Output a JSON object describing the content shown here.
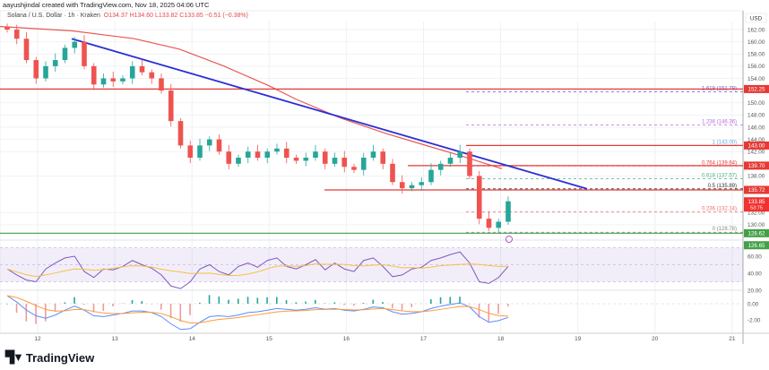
{
  "credit": "aayushjindal created with TradingView.com, Nov 18, 2025 04:06 UTC",
  "legend": {
    "symbol": "Solana / U.S. Dollar · 1h · Kraken",
    "open": "O134.37",
    "high": "H134.60",
    "low": "L133.82",
    "close": "C133.85",
    "change": "−0.51 (−0.38%)"
  },
  "currency": "USD",
  "brand": "TradingView",
  "colors": {
    "up": "#26a69a",
    "down": "#ef5350",
    "trendline": "#2a2fd4",
    "sma": "#e53935",
    "rsi": "#7e57c2",
    "rsi_ma": "#f5c242",
    "macd": "#5b8cff",
    "signal": "#ff9a3c"
  },
  "chart_data": {
    "type": "candlestick",
    "timeframe": "1h",
    "x_ticks": [
      "12",
      "13",
      "14",
      "15",
      "16",
      "17",
      "18",
      "19",
      "20",
      "21"
    ],
    "y_ticks": [
      "162.00",
      "160.00",
      "158.00",
      "156.00",
      "154.00",
      "150.00",
      "148.00",
      "146.00",
      "144.00",
      "142.00",
      "138.00",
      "132.00",
      "130.00"
    ],
    "ylim": [
      124,
      163
    ],
    "closes": [
      162,
      160.5,
      157,
      154,
      156,
      157,
      159,
      160,
      156,
      153,
      154,
      153.5,
      154,
      156,
      155,
      154,
      152,
      147,
      143,
      141,
      143,
      144,
      142,
      140,
      141,
      142,
      141,
      142,
      142.5,
      141,
      140.5,
      141,
      142,
      140,
      141,
      139.5,
      139,
      141,
      142,
      140,
      137,
      136,
      136.5,
      137,
      139,
      140,
      141,
      142,
      138,
      131,
      129.5,
      130.5,
      133.85
    ],
    "sma_curve": [
      [
        0,
        162.5
      ],
      [
        80,
        161.8
      ],
      [
        150,
        160.5
      ],
      [
        200,
        158.8
      ],
      [
        250,
        156
      ],
      [
        300,
        152.8
      ],
      [
        330,
        150.6
      ],
      [
        380,
        147.5
      ],
      [
        430,
        145
      ],
      [
        480,
        142.8
      ],
      [
        510,
        141.5
      ],
      [
        560,
        139.2
      ]
    ],
    "trendline": {
      "from": [
        80,
        160.5
      ],
      "to": [
        655,
        135.9
      ]
    },
    "horizontal_levels": [
      {
        "price": 152.25,
        "label": "152.25",
        "color": "#e53935",
        "from_x": 0
      },
      {
        "price": 143.0,
        "label": "143.00",
        "color": "#e53935",
        "from_x": 520
      },
      {
        "price": 139.7,
        "label": "139.70",
        "color": "#e53935",
        "from_x": 455
      },
      {
        "price": 135.72,
        "label": "135.72",
        "color": "#e53935",
        "from_x": 362
      },
      {
        "price": 128.62,
        "label": "128.62",
        "color": "#43a047",
        "from_x": 0
      }
    ],
    "fib_levels": [
      {
        "price": 151.79,
        "label": "1.618 (151.79)",
        "color": "#6a5acd"
      },
      {
        "price": 146.36,
        "label": "1.236 (146.36)",
        "color": "#b46be0"
      },
      {
        "price": 143.0,
        "label": "1 (143.00)",
        "color": "#64a7e0"
      },
      {
        "price": 139.64,
        "label": "0.764 (139.64)",
        "color": "#e53935"
      },
      {
        "price": 137.57,
        "label": "0.618 (137.57)",
        "color": "#4caf82"
      },
      {
        "price": 135.89,
        "label": "0.5 (135.89)",
        "color": "#333333"
      },
      {
        "price": 132.14,
        "label": "0.236 (132.14)",
        "color": "#ef6a6a"
      },
      {
        "price": 128.78,
        "label": "0 (128.78)",
        "color": "#888888"
      }
    ],
    "price_tags": [
      {
        "price": 133.85,
        "label": "133.85",
        "sub": "53:75",
        "color": "#f23030"
      },
      {
        "price": 126.65,
        "label": "126.65",
        "color": "#43a047"
      }
    ],
    "rsi": {
      "ticks": [
        "60.00",
        "40.00",
        "20.00"
      ],
      "band": [
        70,
        30
      ],
      "values": [
        45,
        38,
        32,
        30,
        45,
        52,
        58,
        60,
        42,
        35,
        45,
        44,
        48,
        55,
        50,
        46,
        38,
        25,
        22,
        30,
        45,
        50,
        42,
        38,
        48,
        52,
        47,
        55,
        58,
        48,
        45,
        50,
        56,
        44,
        52,
        45,
        42,
        55,
        58,
        48,
        36,
        38,
        45,
        47,
        55,
        58,
        62,
        65,
        52,
        30,
        28,
        35,
        48
      ]
    },
    "macd": {
      "ticks": [
        "0.00",
        "-2.00"
      ],
      "values": [
        1,
        0.2,
        -0.8,
        -1.5,
        -1.8,
        -1.4,
        -0.8,
        -0.3,
        -0.8,
        -1.5,
        -1.6,
        -1.4,
        -1.2,
        -0.9,
        -0.9,
        -1.1,
        -1.6,
        -2.5,
        -3.2,
        -3.1,
        -2.3,
        -1.6,
        -1.5,
        -1.6,
        -1.4,
        -1.1,
        -1.0,
        -0.8,
        -0.6,
        -0.7,
        -0.8,
        -0.7,
        -0.5,
        -0.7,
        -0.6,
        -0.8,
        -0.9,
        -0.7,
        -0.4,
        -0.5,
        -1.0,
        -1.3,
        -1.2,
        -1.0,
        -0.6,
        -0.3,
        -0.1,
        0.1,
        -0.4,
        -1.6,
        -2.3,
        -2.1,
        -1.7
      ]
    }
  }
}
